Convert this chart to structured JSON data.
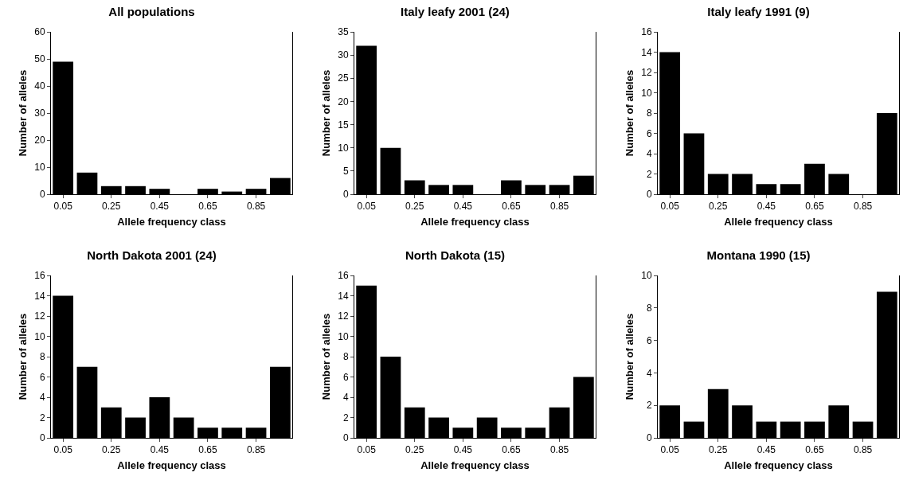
{
  "chart_data": [
    {
      "type": "bar",
      "title": "All populations",
      "xlabel": "Allele frequency class",
      "ylabel": "Number of alleles",
      "categories": [
        "0.05",
        null,
        "0.25",
        null,
        "0.45",
        null,
        "0.65",
        null,
        "0.85",
        null
      ],
      "values": [
        49,
        8,
        3,
        3,
        2,
        0,
        2,
        1,
        2,
        6
      ],
      "color": "#000000",
      "ylim": [
        0,
        60
      ],
      "yticks": [
        0,
        10,
        20,
        30,
        40,
        50,
        60
      ],
      "grid": false,
      "legend": false
    },
    {
      "type": "bar",
      "title": "Italy leafy 2001 (24)",
      "xlabel": "Allele frequency class",
      "ylabel": "Number of alleles",
      "categories": [
        "0.05",
        null,
        "0.25",
        null,
        "0.45",
        null,
        "0.65",
        null,
        "0.85",
        null
      ],
      "values": [
        32,
        10,
        3,
        2,
        2,
        0,
        3,
        2,
        2,
        4
      ],
      "color": "#000000",
      "ylim": [
        0,
        35
      ],
      "yticks": [
        0,
        5,
        10,
        15,
        20,
        25,
        30,
        35
      ],
      "grid": false,
      "legend": false
    },
    {
      "type": "bar",
      "title": "Italy leafy 1991 (9)",
      "xlabel": "Allele frequency class",
      "ylabel": "Number of alleles",
      "categories": [
        "0.05",
        null,
        "0.25",
        null,
        "0.45",
        null,
        "0.65",
        null,
        "0.85",
        null
      ],
      "values": [
        14,
        6,
        2,
        2,
        1,
        1,
        3,
        2,
        0,
        8
      ],
      "color": "#000000",
      "ylim": [
        0,
        16
      ],
      "yticks": [
        0,
        2,
        4,
        6,
        8,
        10,
        12,
        14,
        16
      ],
      "grid": false,
      "legend": false
    },
    {
      "type": "bar",
      "title": "North Dakota 2001 (24)",
      "xlabel": "Allele frequency class",
      "ylabel": "Number of alleles",
      "categories": [
        "0.05",
        null,
        "0.25",
        null,
        "0.45",
        null,
        "0.65",
        null,
        "0.85",
        null
      ],
      "values": [
        14,
        7,
        3,
        2,
        4,
        2,
        1,
        1,
        1,
        7
      ],
      "color": "#000000",
      "ylim": [
        0,
        16
      ],
      "yticks": [
        0,
        2,
        4,
        6,
        8,
        10,
        12,
        14,
        16
      ],
      "grid": false,
      "legend": false
    },
    {
      "type": "bar",
      "title": "North Dakota (15)",
      "xlabel": "Allele frequency class",
      "ylabel": "Number of alleles",
      "categories": [
        "0.05",
        null,
        "0.25",
        null,
        "0.45",
        null,
        "0.65",
        null,
        "0.85",
        null
      ],
      "values": [
        15,
        8,
        3,
        2,
        1,
        2,
        1,
        1,
        3,
        6
      ],
      "color": "#000000",
      "ylim": [
        0,
        16
      ],
      "yticks": [
        0,
        2,
        4,
        6,
        8,
        10,
        12,
        14,
        16
      ],
      "grid": false,
      "legend": false
    },
    {
      "type": "bar",
      "title": "Montana 1990 (15)",
      "xlabel": "Allele frequency class",
      "ylabel": "Number of alleles",
      "categories": [
        "0.05",
        null,
        "0.25",
        null,
        "0.45",
        null,
        "0.65",
        null,
        "0.85",
        null
      ],
      "values": [
        2,
        1,
        3,
        2,
        1,
        1,
        1,
        2,
        1,
        9
      ],
      "color": "#000000",
      "ylim": [
        0,
        10
      ],
      "yticks": [
        0,
        2,
        4,
        6,
        8,
        10
      ],
      "grid": false,
      "legend": false
    }
  ]
}
